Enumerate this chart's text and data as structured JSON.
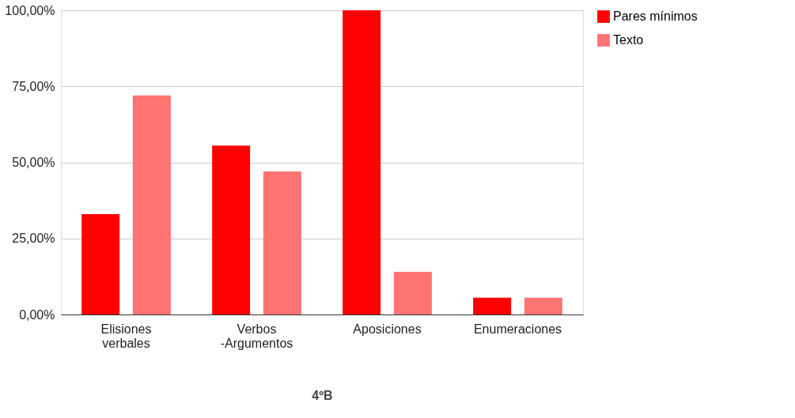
{
  "chart_data": {
    "type": "bar",
    "xlabel": "4ºB",
    "categories": [
      "Elisiones verbales",
      "Verbos -Argumentos",
      "Aposiciones",
      "Enumeraciones"
    ],
    "series": [
      {
        "name": "Pares mínimos",
        "color": "#ff0000",
        "values": [
          33,
          55.5,
          100,
          5.5
        ]
      },
      {
        "name": "Texto",
        "color": "#ff7373",
        "values": [
          72,
          47,
          14,
          5.5
        ]
      }
    ],
    "ylim": [
      0,
      100
    ],
    "yticks": [
      {
        "value": 0,
        "label": "0,00%"
      },
      {
        "value": 25,
        "label": "25,00%"
      },
      {
        "value": 50,
        "label": "50,00%"
      },
      {
        "value": 75,
        "label": "75,00%"
      },
      {
        "value": 100,
        "label": "100,00%"
      }
    ],
    "grid": "y",
    "legend": "top right"
  }
}
